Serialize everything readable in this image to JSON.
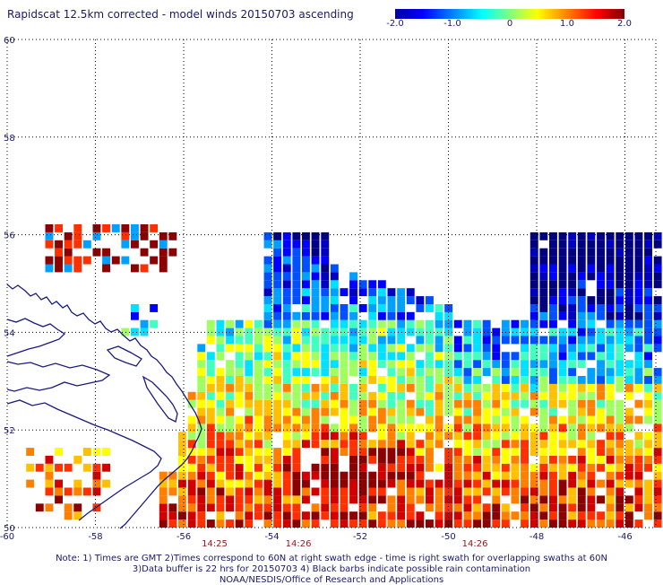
{
  "title": "Rapidscat 12.5km corrected - model winds 20150703 ascending",
  "colorbar": {
    "ticks": [
      "-2.0",
      "-1.0",
      "0",
      "1.0",
      "2.0"
    ],
    "tick_values": [
      -2,
      -1,
      0,
      1,
      2
    ],
    "colors": [
      "#0000a0",
      "#0000ff",
      "#0080ff",
      "#00ffff",
      "#80ff80",
      "#ffff00",
      "#ff8000",
      "#ff0000",
      "#800000"
    ]
  },
  "axes": {
    "x_ticks": [
      "-60",
      "-58",
      "-56",
      "-54",
      "-52",
      "-50",
      "-48",
      "-46"
    ],
    "x_values": [
      -60,
      -58,
      -56,
      -54,
      -52,
      -50,
      -48,
      -46
    ],
    "y_ticks": [
      "60",
      "58",
      "56",
      "54",
      "52",
      "50"
    ],
    "y_values": [
      60,
      58,
      56,
      54,
      52,
      50
    ],
    "lon_range": [
      -60,
      -45.3
    ],
    "lat_range": [
      50,
      60
    ]
  },
  "times": [
    {
      "label": "14:25",
      "lon": -55.3
    },
    {
      "label": "14:26",
      "lon": -53.4
    },
    {
      "label": "14:26",
      "lon": -49.4
    }
  ],
  "notes": {
    "line1": "Note: 1) Times are GMT 2)Times correspond to 60N at right swath edge - time is right swath for overlapping swaths at 60N",
    "line2": "3)Data buffer is 22 hrs for 20150703 4) Black barbs indicate possible rain contamination",
    "line3": "NOAA/NESDIS/Office of Research and Applications"
  },
  "colors": {
    "text": "#1a1a66",
    "coast": "#1a1a80",
    "grid": "#000000"
  }
}
